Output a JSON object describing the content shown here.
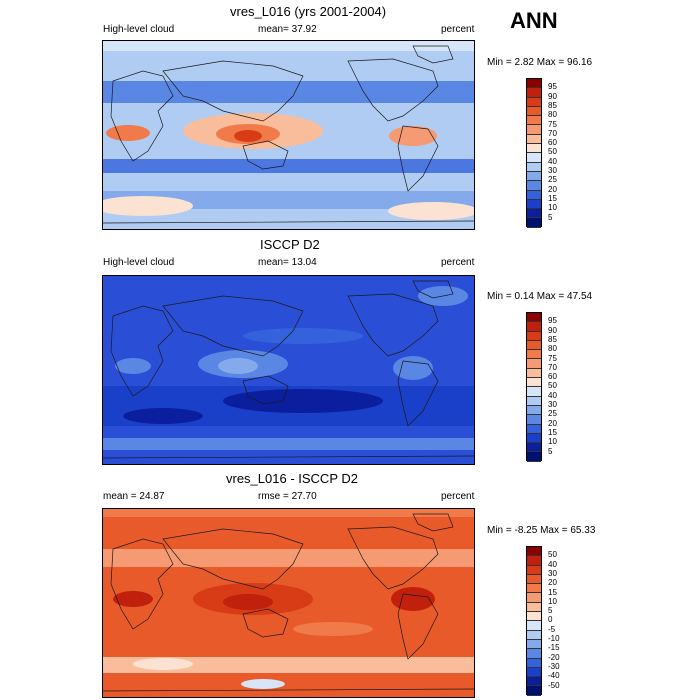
{
  "season": "ANN",
  "panels": [
    {
      "title": "vres_L016 (yrs 2001-2004)",
      "left_label": "High-level cloud",
      "center_label": "mean=  37.92",
      "right_label": "percent",
      "minmax": "Min =   2.82 Max =  96.16",
      "theme": "model"
    },
    {
      "title": "ISCCP D2",
      "left_label": "High-level cloud",
      "center_label": "mean=  13.04",
      "right_label": "percent",
      "minmax": "Min =   0.14 Max =  47.54",
      "theme": "obs"
    },
    {
      "title": "vres_L016 - ISCCP D2",
      "left_label": "mean =  24.87",
      "center_label": "rmse =  27.70",
      "right_label": "percent",
      "minmax": "Min =  -8.25 Max =  65.33",
      "theme": "diff"
    }
  ],
  "colorbar_abs": {
    "labels": [
      "95",
      "90",
      "85",
      "80",
      "75",
      "70",
      "60",
      "50",
      "40",
      "30",
      "25",
      "20",
      "15",
      "10",
      "5"
    ],
    "colors": [
      "#8b0000",
      "#c0200c",
      "#d83c16",
      "#e85a2a",
      "#f07a4a",
      "#f59a72",
      "#f9bd9c",
      "#fbe2d2",
      "#d6e6f8",
      "#b0ccf2",
      "#85aaec",
      "#5a86e4",
      "#3362dc",
      "#1a3fc8",
      "#0a1e9e",
      "#00106e"
    ]
  },
  "colorbar_diff": {
    "labels": [
      "50",
      "40",
      "30",
      "20",
      "15",
      "10",
      "5",
      "0",
      "-5",
      "-10",
      "-15",
      "-20",
      "-30",
      "-40",
      "-50"
    ],
    "colors": [
      "#8b0000",
      "#c0200c",
      "#d83c16",
      "#e85a2a",
      "#f07a4a",
      "#f59a72",
      "#f9bd9c",
      "#fbe2d2",
      "#d6e6f8",
      "#b0ccf2",
      "#85aaec",
      "#5a86e4",
      "#3362dc",
      "#1a3fc8",
      "#0a1e9e",
      "#00106e"
    ]
  },
  "colors": {
    "land_line": "#1a1a1a",
    "model_base": "#b0ccf2",
    "obs_base": "#2a4fd6",
    "diff_base": "#e85a2a"
  }
}
